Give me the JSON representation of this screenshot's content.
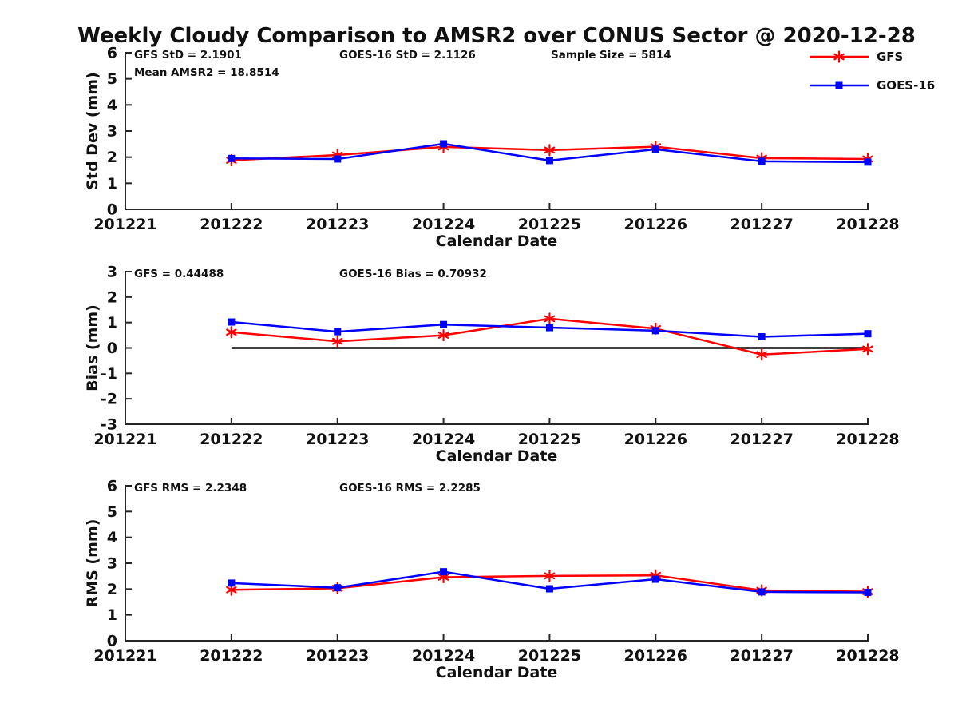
{
  "title": "Weekly Cloudy Comparison to AMSR2 over CONUS Sector @ 2020-12-28",
  "colors": {
    "gfs": "#ff0000",
    "goes16": "#0000ff",
    "axis": "#262626",
    "text": "#111111",
    "zero_line": "#000000"
  },
  "legend": {
    "position": "top-right",
    "items": [
      {
        "label": "GFS",
        "color": "#ff0000",
        "marker": "asterisk"
      },
      {
        "label": "GOES-16",
        "color": "#0000ff",
        "marker": "square"
      }
    ]
  },
  "chart_data": [
    {
      "type": "line",
      "ylabel": "Std Dev (mm)",
      "xlabel": "Calendar Date",
      "ylim": [
        0,
        6
      ],
      "yticks": [
        0,
        1,
        2,
        3,
        4,
        5,
        6
      ],
      "grid": false,
      "x_ticks": [
        "201221",
        "201222",
        "201223",
        "201224",
        "201225",
        "201226",
        "201227",
        "201228"
      ],
      "x": [
        "201222",
        "201223",
        "201224",
        "201225",
        "201226",
        "201227",
        "201228"
      ],
      "zero_line": false,
      "annotations": [
        {
          "text": "GFS StD = 2.1901",
          "col": 0,
          "row": 0
        },
        {
          "text": "GOES-16 StD = 2.1126",
          "col": 1,
          "row": 0
        },
        {
          "text": "Sample Size = 5814",
          "col": 2,
          "row": 0
        },
        {
          "text": "Mean AMSR2 = 18.8514",
          "col": 0,
          "row": 1
        }
      ],
      "series": [
        {
          "name": "GFS",
          "color": "#ff0000",
          "marker": "asterisk",
          "values": [
            1.88,
            2.08,
            2.39,
            2.27,
            2.4,
            1.96,
            1.93
          ]
        },
        {
          "name": "GOES-16",
          "color": "#0000ff",
          "marker": "square",
          "values": [
            1.95,
            1.93,
            2.51,
            1.87,
            2.3,
            1.84,
            1.81
          ]
        }
      ]
    },
    {
      "type": "line",
      "ylabel": "Bias (mm)",
      "xlabel": "Calendar Date",
      "ylim": [
        -3,
        3
      ],
      "yticks": [
        -3,
        -2,
        -1,
        0,
        1,
        2,
        3
      ],
      "grid": false,
      "x_ticks": [
        "201221",
        "201222",
        "201223",
        "201224",
        "201225",
        "201226",
        "201227",
        "201228"
      ],
      "x": [
        "201222",
        "201223",
        "201224",
        "201225",
        "201226",
        "201227",
        "201228"
      ],
      "zero_line": true,
      "annotations": [
        {
          "text": "GFS = 0.44488",
          "col": 0,
          "row": 0
        },
        {
          "text": "GOES-16 Bias  = 0.70932",
          "col": 1,
          "row": 0
        }
      ],
      "series": [
        {
          "name": "GFS",
          "color": "#ff0000",
          "marker": "asterisk",
          "values": [
            0.62,
            0.26,
            0.5,
            1.15,
            0.76,
            -0.26,
            -0.04
          ]
        },
        {
          "name": "GOES-16",
          "color": "#0000ff",
          "marker": "square",
          "values": [
            1.02,
            0.64,
            0.92,
            0.8,
            0.68,
            0.44,
            0.56
          ]
        }
      ]
    },
    {
      "type": "line",
      "ylabel": "RMS (mm)",
      "xlabel": "Calendar Date",
      "ylim": [
        0,
        6
      ],
      "yticks": [
        0,
        1,
        2,
        3,
        4,
        5,
        6
      ],
      "grid": false,
      "x_ticks": [
        "201221",
        "201222",
        "201223",
        "201224",
        "201225",
        "201226",
        "201227",
        "201228"
      ],
      "x": [
        "201222",
        "201223",
        "201224",
        "201225",
        "201226",
        "201227",
        "201228"
      ],
      "zero_line": false,
      "annotations": [
        {
          "text": "GFS RMS = 2.2348",
          "col": 0,
          "row": 0
        },
        {
          "text": "GOES-16 RMS = 2.2285",
          "col": 1,
          "row": 0
        }
      ],
      "series": [
        {
          "name": "GFS",
          "color": "#ff0000",
          "marker": "asterisk",
          "values": [
            1.97,
            2.03,
            2.46,
            2.51,
            2.53,
            1.95,
            1.9
          ]
        },
        {
          "name": "GOES-16",
          "color": "#0000ff",
          "marker": "square",
          "values": [
            2.23,
            2.05,
            2.67,
            2.01,
            2.38,
            1.89,
            1.87
          ]
        }
      ]
    }
  ]
}
